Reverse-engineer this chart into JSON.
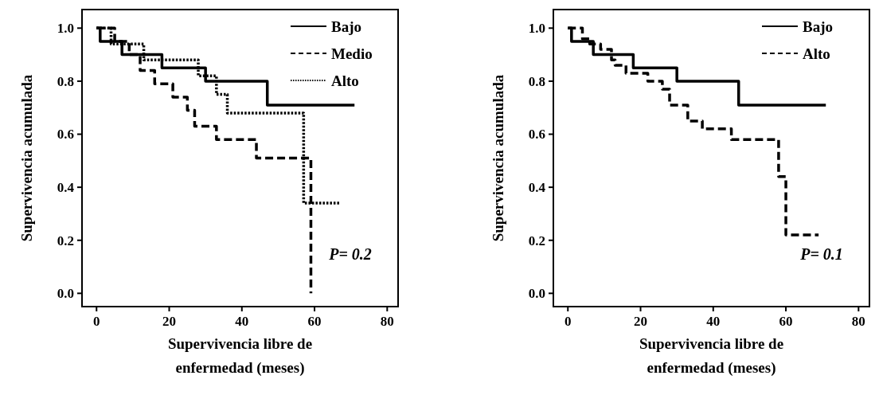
{
  "chart_data": [
    {
      "type": "step",
      "xlabel": "Supervivencia libre de enfermedad (meses)",
      "ylabel": "Supervivencia acumulada",
      "xlim": [
        -4,
        83
      ],
      "ylim": [
        -0.05,
        1.07
      ],
      "xticks": [
        0,
        20,
        40,
        60,
        80
      ],
      "yticks": [
        {
          "value": 0,
          "label": "0.0"
        },
        {
          "value": 0.2,
          "label": "0.2"
        },
        {
          "value": 0.4,
          "label": "0.4"
        },
        {
          "value": 0.6,
          "label": "0.6"
        },
        {
          "value": 0.8,
          "label": "0.8"
        },
        {
          "value": 1,
          "label": "1.0"
        }
      ],
      "grid": false,
      "legend": "top right",
      "marker": "none",
      "annotations": [
        "P= 0.2"
      ],
      "series": [
        {
          "name": "Bajo",
          "color": "#000000",
          "line_style": "solid",
          "x": [
            0,
            1,
            7,
            18,
            30,
            47,
            71
          ],
          "values": [
            1.0,
            0.95,
            0.9,
            0.85,
            0.8,
            0.71,
            0.71
          ]
        },
        {
          "name": "Medio",
          "color": "#000000",
          "line_style": "dashed",
          "x": [
            0,
            5,
            9,
            12,
            16,
            21,
            25,
            27,
            33,
            44,
            59
          ],
          "values": [
            1.0,
            0.95,
            0.9,
            0.84,
            0.79,
            0.74,
            0.69,
            0.63,
            0.58,
            0.51,
            0.0
          ]
        },
        {
          "name": "Alto",
          "color": "#000000",
          "line_style": "dotted",
          "x": [
            0,
            4,
            13,
            28,
            33,
            36,
            57,
            67
          ],
          "values": [
            1.0,
            0.94,
            0.88,
            0.82,
            0.75,
            0.68,
            0.34,
            0.34
          ]
        }
      ]
    },
    {
      "type": "step",
      "xlabel": "Supervivencia libre de enfermedad (meses)",
      "ylabel": "Supervivencia acumulada",
      "xlim": [
        -4,
        83
      ],
      "ylim": [
        -0.05,
        1.07
      ],
      "xticks": [
        0,
        20,
        40,
        60,
        80
      ],
      "yticks": [
        {
          "value": 0,
          "label": "0.0"
        },
        {
          "value": 0.2,
          "label": "0.2"
        },
        {
          "value": 0.4,
          "label": "0.4"
        },
        {
          "value": 0.6,
          "label": "0.6"
        },
        {
          "value": 0.8,
          "label": "0.8"
        },
        {
          "value": 1,
          "label": "1.0"
        }
      ],
      "grid": false,
      "legend": "top right",
      "marker": "none",
      "annotations": [
        "P= 0.1"
      ],
      "series": [
        {
          "name": "Bajo",
          "color": "#000000",
          "line_style": "solid",
          "x": [
            0,
            1,
            7,
            18,
            30,
            47,
            71
          ],
          "values": [
            1.0,
            0.95,
            0.9,
            0.85,
            0.8,
            0.71,
            0.71
          ]
        },
        {
          "name": "Alto",
          "color": "#000000",
          "line_style": "dashed",
          "x": [
            0,
            4,
            6,
            9,
            12,
            13,
            16,
            22,
            26,
            28,
            33,
            37,
            45,
            58,
            60,
            69
          ],
          "values": [
            1.0,
            0.96,
            0.94,
            0.92,
            0.88,
            0.86,
            0.83,
            0.8,
            0.77,
            0.71,
            0.65,
            0.62,
            0.58,
            0.44,
            0.22,
            0.22
          ]
        }
      ]
    }
  ]
}
